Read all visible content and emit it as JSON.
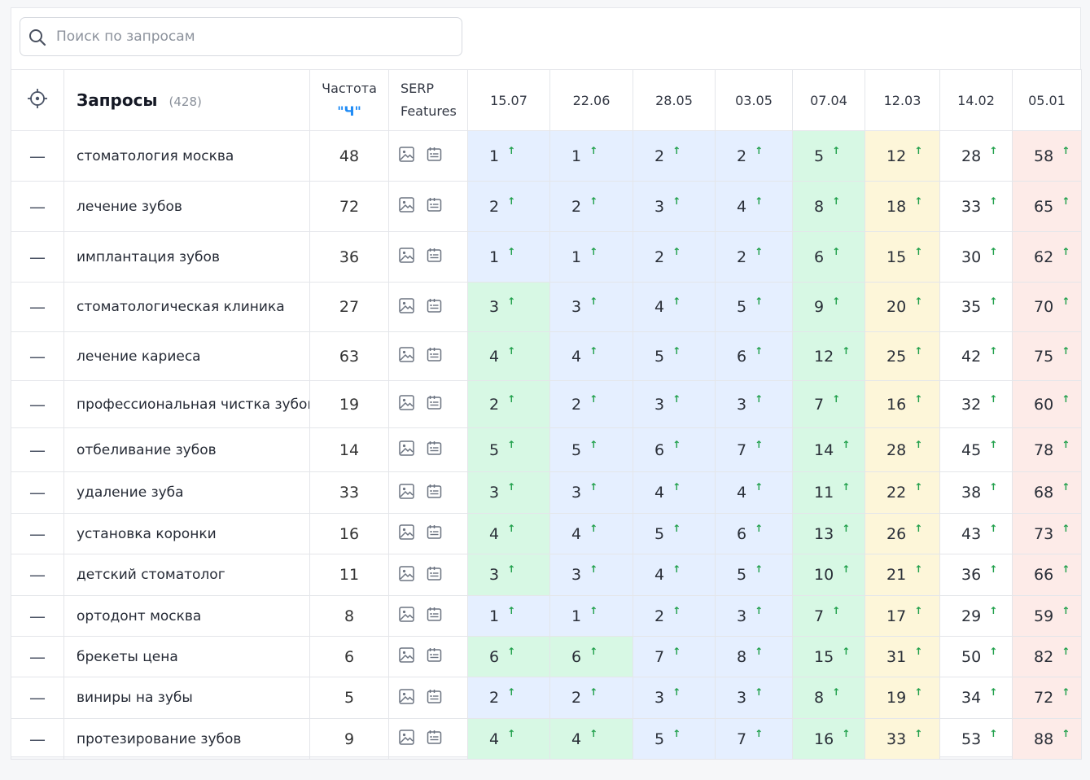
{
  "search": {
    "placeholder": "Поиск по запросам",
    "icon": "search-icon"
  },
  "header": {
    "target_icon": "crosshair-icon",
    "query_title": "Запросы",
    "query_count": "(428)",
    "freq_title": "Частота",
    "freq_sub": "\"Ч\"",
    "serp_line1": "SERP",
    "serp_line2": "Features",
    "dates": [
      "15.07",
      "22.06",
      "28.05",
      "03.05",
      "07.04",
      "12.03",
      "14.02",
      "05.01"
    ]
  },
  "colors": {
    "blue": "#e5efff",
    "green": "#d7f8e4",
    "yellow": "#fdf6d9",
    "red": "#fdebe8",
    "up_arrow": "#21a04c",
    "accent": "#1f8bf5"
  },
  "rows": [
    {
      "toggle": "—",
      "query": "стоматология москва",
      "freq": "48",
      "positions": [
        "1",
        "1",
        "2",
        "2",
        "5",
        "12",
        "28",
        "58"
      ],
      "bgs": [
        "blue",
        "blue",
        "blue",
        "blue",
        "green",
        "yellow",
        "",
        "red"
      ]
    },
    {
      "toggle": "—",
      "query": "лечение зубов",
      "freq": "72",
      "positions": [
        "2",
        "2",
        "3",
        "4",
        "8",
        "18",
        "33",
        "65"
      ],
      "bgs": [
        "blue",
        "blue",
        "blue",
        "blue",
        "green",
        "yellow",
        "",
        "red"
      ]
    },
    {
      "toggle": "—",
      "query": "имплантация зубов",
      "freq": "36",
      "positions": [
        "1",
        "1",
        "2",
        "2",
        "6",
        "15",
        "30",
        "62"
      ],
      "bgs": [
        "blue",
        "blue",
        "blue",
        "blue",
        "green",
        "yellow",
        "",
        "red"
      ]
    },
    {
      "toggle": "—",
      "query": "стоматологическая клиника",
      "freq": "27",
      "positions": [
        "3",
        "3",
        "4",
        "5",
        "9",
        "20",
        "35",
        "70"
      ],
      "bgs": [
        "green",
        "blue",
        "blue",
        "blue",
        "green",
        "yellow",
        "",
        "red"
      ]
    },
    {
      "toggle": "—",
      "query": "лечение кариеса",
      "freq": "63",
      "positions": [
        "4",
        "4",
        "5",
        "6",
        "12",
        "25",
        "42",
        "75"
      ],
      "bgs": [
        "green",
        "blue",
        "blue",
        "blue",
        "green",
        "yellow",
        "",
        "red"
      ]
    },
    {
      "toggle": "—",
      "query": "профессиональная чистка зубов",
      "freq": "19",
      "positions": [
        "2",
        "2",
        "3",
        "3",
        "7",
        "16",
        "32",
        "60"
      ],
      "bgs": [
        "green",
        "blue",
        "blue",
        "blue",
        "green",
        "yellow",
        "",
        "red"
      ]
    },
    {
      "toggle": "—",
      "query": "отбеливание зубов",
      "freq": "14",
      "positions": [
        "5",
        "5",
        "6",
        "7",
        "14",
        "28",
        "45",
        "78"
      ],
      "bgs": [
        "green",
        "blue",
        "blue",
        "blue",
        "green",
        "yellow",
        "",
        "red"
      ]
    },
    {
      "toggle": "—",
      "query": "удаление зуба",
      "freq": "33",
      "positions": [
        "3",
        "3",
        "4",
        "4",
        "11",
        "22",
        "38",
        "68"
      ],
      "bgs": [
        "green",
        "blue",
        "blue",
        "blue",
        "green",
        "yellow",
        "",
        "red"
      ]
    },
    {
      "toggle": "—",
      "query": "установка коронки",
      "freq": "16",
      "positions": [
        "4",
        "4",
        "5",
        "6",
        "13",
        "26",
        "43",
        "73"
      ],
      "bgs": [
        "green",
        "blue",
        "blue",
        "blue",
        "green",
        "yellow",
        "",
        "red"
      ]
    },
    {
      "toggle": "—",
      "query": "детский стоматолог",
      "freq": "11",
      "positions": [
        "3",
        "3",
        "4",
        "5",
        "10",
        "21",
        "36",
        "66"
      ],
      "bgs": [
        "green",
        "blue",
        "blue",
        "blue",
        "green",
        "yellow",
        "",
        "red"
      ]
    },
    {
      "toggle": "—",
      "query": "ортодонт москва",
      "freq": "8",
      "positions": [
        "1",
        "1",
        "2",
        "3",
        "7",
        "17",
        "29",
        "59"
      ],
      "bgs": [
        "blue",
        "blue",
        "blue",
        "blue",
        "green",
        "yellow",
        "",
        "red"
      ]
    },
    {
      "toggle": "—",
      "query": "брекеты цена",
      "freq": "6",
      "positions": [
        "6",
        "6",
        "7",
        "8",
        "15",
        "31",
        "50",
        "82"
      ],
      "bgs": [
        "green",
        "green",
        "blue",
        "blue",
        "green",
        "yellow",
        "",
        "red"
      ]
    },
    {
      "toggle": "—",
      "query": "виниры на зубы",
      "freq": "5",
      "positions": [
        "2",
        "2",
        "3",
        "3",
        "8",
        "19",
        "34",
        "72"
      ],
      "bgs": [
        "blue",
        "blue",
        "blue",
        "blue",
        "green",
        "yellow",
        "",
        "red"
      ]
    },
    {
      "toggle": "—",
      "query": "протезирование зубов",
      "freq": "9",
      "positions": [
        "4",
        "4",
        "5",
        "7",
        "16",
        "33",
        "53",
        "88"
      ],
      "bgs": [
        "green",
        "green",
        "blue",
        "blue",
        "green",
        "yellow",
        "",
        "red"
      ]
    }
  ],
  "arrow_glyph": "↑"
}
